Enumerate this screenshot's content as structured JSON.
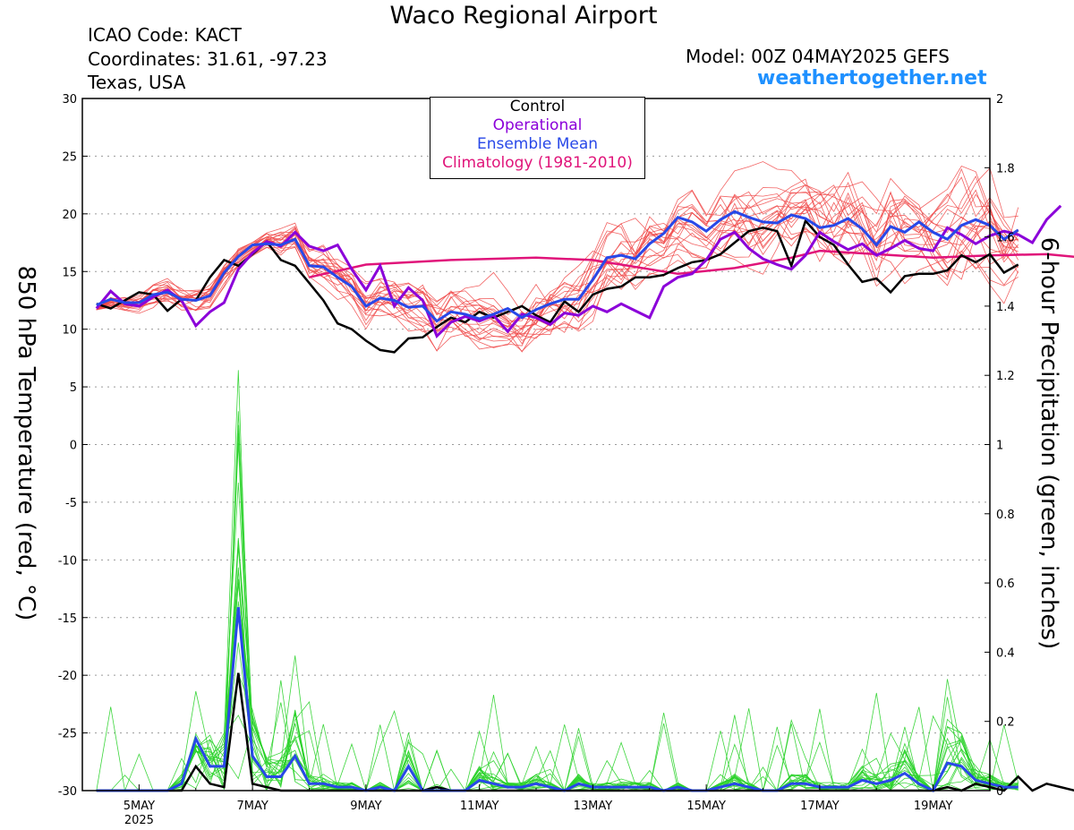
{
  "header": {
    "title": "Waco Regional Airport",
    "icao": "ICAO Code: KACT",
    "coordinates": "Coordinates: 31.61, -97.23",
    "region": "Texas, USA",
    "model": "Model: 00Z 04MAY2025 GEFS",
    "site": "weathertogether.net"
  },
  "chart_data": {
    "type": "line",
    "title": "Waco Regional Airport",
    "x_start": "2025-05-04 06Z",
    "x_step_hours": 6,
    "xlim": [
      "2025-05-04 00Z",
      "2025-05-20 00Z"
    ],
    "x_ticks": [
      "5MAY",
      "7MAY",
      "9MAY",
      "11MAY",
      "13MAY",
      "15MAY",
      "17MAY",
      "19MAY"
    ],
    "x_tick_year": "2025",
    "y_left_label": "850 hPa Temperature (red, °C)",
    "y_left_ticks": [
      "30",
      "25",
      "20",
      "15",
      "10",
      "5",
      "0",
      "-5",
      "-10",
      "-15",
      "-20",
      "-25",
      "-30"
    ],
    "y_left_range": [
      -30,
      30
    ],
    "y_right_label": "6-hour Precipitation (green, inches)",
    "y_right_ticks": [
      "2",
      "1.8",
      "1.6",
      "1.4",
      "1.2",
      "1",
      "0.8",
      "0.6",
      "0.4",
      "0.2",
      "0"
    ],
    "y_right_range": [
      0,
      2
    ],
    "grid": "dotted horizontal",
    "legend": {
      "position": "top-center",
      "entries": [
        {
          "label": "Control",
          "color": "#000000"
        },
        {
          "label": "Operational",
          "color": "#8b00d9"
        },
        {
          "label": "Ensemble Mean",
          "color": "#2848e8"
        },
        {
          "label": "Climatology (1981-2010)",
          "color": "#e0147a"
        }
      ]
    },
    "colors": {
      "member_temperature": "#f04848",
      "member_precipitation": "#28d228",
      "control": "#000000",
      "operational": "#8b00d9",
      "ensemble_mean": "#2848e8",
      "climatology": "#e0147a"
    },
    "temperature_series": [
      {
        "name": "Control",
        "values": [
          12.2,
          11.8,
          12.5,
          13.2,
          13.0,
          11.6,
          12.6,
          12.5,
          14.5,
          16.0,
          15.5,
          16.5,
          17.6,
          16.0,
          15.5,
          14.0,
          12.5,
          10.5,
          10.0,
          9.0,
          8.2,
          8.0,
          9.2,
          9.3,
          10.2,
          11.0,
          10.6,
          11.5,
          11.0,
          11.5,
          12.0,
          11.2,
          10.6,
          12.4,
          11.5,
          13.0,
          13.5,
          13.7,
          14.5,
          14.5,
          14.7,
          15.3,
          15.8,
          16.0,
          16.5,
          17.5,
          18.5,
          18.8,
          18.5,
          15.5,
          19.4,
          18.0,
          17.3,
          15.6,
          14.1,
          14.4,
          13.2,
          14.6,
          14.8,
          14.8,
          15.1,
          16.4,
          15.8,
          16.5,
          14.9,
          15.6
        ]
      },
      {
        "name": "Operational",
        "values": [
          11.8,
          13.3,
          12.2,
          12.0,
          12.8,
          13.4,
          12.5,
          10.3,
          11.5,
          12.3,
          15.2,
          16.6,
          17.6,
          17.2,
          18.4,
          17.2,
          16.8,
          17.3,
          15.2,
          13.4,
          15.5,
          12.0,
          13.6,
          12.5,
          9.4,
          10.6,
          11.1,
          10.7,
          11.2,
          9.8,
          11.3,
          11.0,
          10.4,
          11.4,
          11.2,
          12.0,
          11.5,
          12.2,
          11.6,
          11.0,
          13.7,
          14.5,
          14.8,
          16.0,
          17.8,
          18.4,
          17.0,
          16.1,
          15.6,
          15.2,
          16.4,
          18.4,
          17.6,
          16.9,
          17.4,
          16.4,
          17.0,
          17.7,
          17.0,
          16.8,
          18.8,
          18.2,
          17.4,
          18.1,
          18.5,
          18.2,
          17.5,
          19.5,
          20.7
        ]
      },
      {
        "name": "Ensemble Mean",
        "values": [
          12.1,
          12.6,
          12.3,
          12.3,
          13.0,
          13.2,
          12.6,
          12.5,
          12.9,
          14.9,
          16.3,
          17.3,
          17.4,
          17.3,
          17.8,
          15.5,
          15.4,
          14.5,
          13.7,
          12.0,
          12.7,
          12.5,
          11.9,
          12.0,
          10.7,
          11.5,
          11.3,
          10.9,
          11.3,
          11.8,
          11.0,
          11.7,
          12.2,
          12.6,
          12.6,
          14.3,
          16.2,
          16.4,
          16.1,
          17.4,
          18.3,
          19.7,
          19.3,
          18.5,
          19.5,
          20.2,
          19.7,
          19.3,
          19.2,
          19.9,
          19.6,
          18.8,
          19.0,
          19.6,
          18.7,
          17.3,
          18.9,
          18.4,
          19.3,
          18.4,
          17.8,
          19.0,
          19.5,
          19.0,
          17.8,
          18.6
        ]
      },
      {
        "name": "Climatology (1981-2010)",
        "values": [
          14.5,
          15.6,
          16.0,
          16.2,
          16.0,
          14.8,
          15.3,
          16.2,
          16.8,
          16.5,
          16.2,
          16.4,
          16.5,
          15.8,
          16.2
        ]
      }
    ],
    "climatology_x_days": [
      4.0,
      5.0,
      6.5,
      8.0,
      9.0,
      10.5,
      11.5,
      12.5,
      13.0,
      14.0,
      15.0,
      16.0,
      17.0,
      18.5,
      20.0
    ],
    "precipitation_series": [
      {
        "name": "Control",
        "values": [
          0,
          0,
          0,
          0,
          0,
          0,
          0,
          0.07,
          0.02,
          0.01,
          0.34,
          0.02,
          0.01,
          0,
          0,
          0,
          0,
          0,
          0,
          0,
          0,
          0,
          0,
          0,
          0.01,
          0,
          0,
          0,
          0,
          0,
          0,
          0,
          0,
          0,
          0,
          0,
          0,
          0,
          0,
          0,
          0,
          0,
          0,
          0,
          0,
          0,
          0,
          0,
          0,
          0,
          0,
          0,
          0,
          0,
          0,
          0,
          0,
          0,
          0,
          0,
          0.01,
          0,
          0.02,
          0.01,
          0,
          0.04,
          0,
          0.02,
          0.01,
          0,
          0,
          0
        ]
      },
      {
        "name": "Ensemble Mean",
        "values": [
          0,
          0,
          0,
          0,
          0,
          0,
          0.02,
          0.15,
          0.07,
          0.07,
          0.53,
          0.1,
          0.04,
          0.04,
          0.1,
          0.02,
          0.02,
          0.01,
          0.01,
          0,
          0.01,
          0,
          0.07,
          0,
          0,
          0,
          0,
          0.03,
          0.02,
          0.01,
          0.01,
          0.02,
          0.01,
          0,
          0.02,
          0.01,
          0.01,
          0.01,
          0.01,
          0.01,
          0,
          0.01,
          0,
          0,
          0.01,
          0.02,
          0.01,
          0,
          0,
          0.02,
          0.02,
          0.01,
          0.01,
          0.01,
          0.03,
          0.02,
          0.03,
          0.05,
          0.02,
          0,
          0.08,
          0.07,
          0.03,
          0.02,
          0.01,
          0.01
        ]
      }
    ]
  }
}
